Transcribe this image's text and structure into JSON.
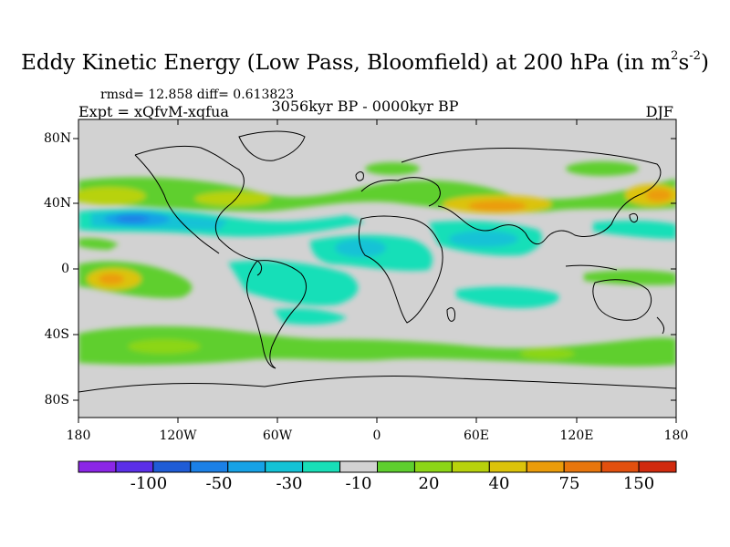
{
  "title_main": "Eddy Kinetic Energy (Low Pass, Bloomfield) at 200 hPa (in m",
  "title_sup1": "2",
  "title_s": "s",
  "title_sup2": "-2",
  "title_end": ")",
  "stats": "rmsd= 12.858 diff= 0.613823",
  "expt": "Expt = xQfvM-xqfua",
  "period": "3056kyr BP - 0000kyr BP",
  "season": "DJF",
  "map": {
    "y_ticks": [
      "80N",
      "40N",
      "0",
      "40S",
      "80S"
    ],
    "x_ticks": [
      "180",
      "120W",
      "60W",
      "0",
      "60E",
      "120E",
      "180"
    ],
    "land_color": "#c8c8c8",
    "zero_color": "#d2d2d2"
  },
  "colorbar": {
    "colors": [
      "#8b26e6",
      "#5b2fe8",
      "#1f5cd6",
      "#1b80e6",
      "#16a2e6",
      "#13c2d6",
      "#18dfb8",
      "#d2d2d2",
      "#5ecf2e",
      "#8cd616",
      "#b8d20c",
      "#dcc30a",
      "#eb9c0a",
      "#e8760c",
      "#e2500e",
      "#d12a0e"
    ],
    "labels": [
      "-100",
      "-50",
      "-30",
      "-10",
      "20",
      "40",
      "75",
      "150"
    ]
  }
}
